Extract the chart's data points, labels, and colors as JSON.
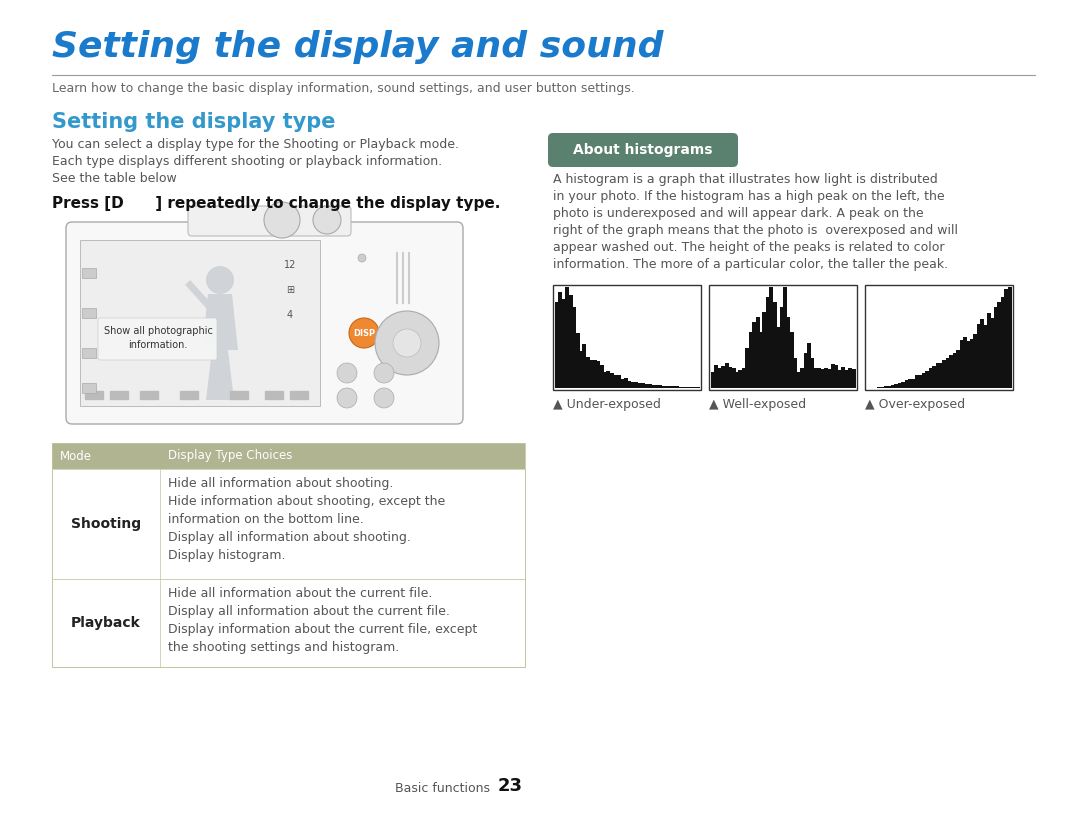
{
  "title": "Setting the display and sound",
  "title_color": "#1a7acc",
  "subtitle": "Learn how to change the basic display information, sound settings, and user button settings.",
  "subtitle_color": "#666666",
  "section1_title": "Setting the display type",
  "section1_title_color": "#3399cc",
  "section1_body1": "You can select a display type for the Shooting or Playback mode.",
  "section1_body2": "Each type displays different shooting or playback information.",
  "section1_body3": "See the table below",
  "press_line1": "Press [D",
  "press_line2": "] repeatedly to change the display type.",
  "about_hist_label": "About histograms",
  "about_hist_bg": "#5a8070",
  "about_hist_text_lines": [
    "A histogram is a graph that illustrates how light is distributed",
    "in your photo. If the histogram has a high peak on the left, the",
    "photo is underexposed and will appear dark. A peak on the",
    "right of the graph means that the photo is  overexposed and will",
    "appear washed out. The height of the peaks is related to color",
    "information. The more of a particular color, the taller the peak."
  ],
  "hist_labels": [
    "▲ Under-exposed",
    "▲ Well-exposed",
    "▲ Over-exposed"
  ],
  "table_header_bg": "#b0b490",
  "table_header_text_color": "#ffffff",
  "table_header": [
    "Mode",
    "Display Type Choices"
  ],
  "table_row1_mode": "Shooting",
  "table_row1_lines": [
    "Hide all information about shooting.",
    "Hide information about shooting, except the",
    "information on the bottom line.",
    "Display all information about shooting.",
    "Display histogram."
  ],
  "table_row2_mode": "Playback",
  "table_row2_lines": [
    "Hide all information about the current file.",
    "Display all information about the current file.",
    "Display information about the current file, except",
    "the shooting settings and histogram."
  ],
  "footer_text": "Basic functions",
  "footer_num": "23",
  "body_color": "#555555",
  "table_border_color": "#c0c4a0",
  "table_mode_color": "#222222",
  "background_color": "#ffffff",
  "line_color": "#999999"
}
